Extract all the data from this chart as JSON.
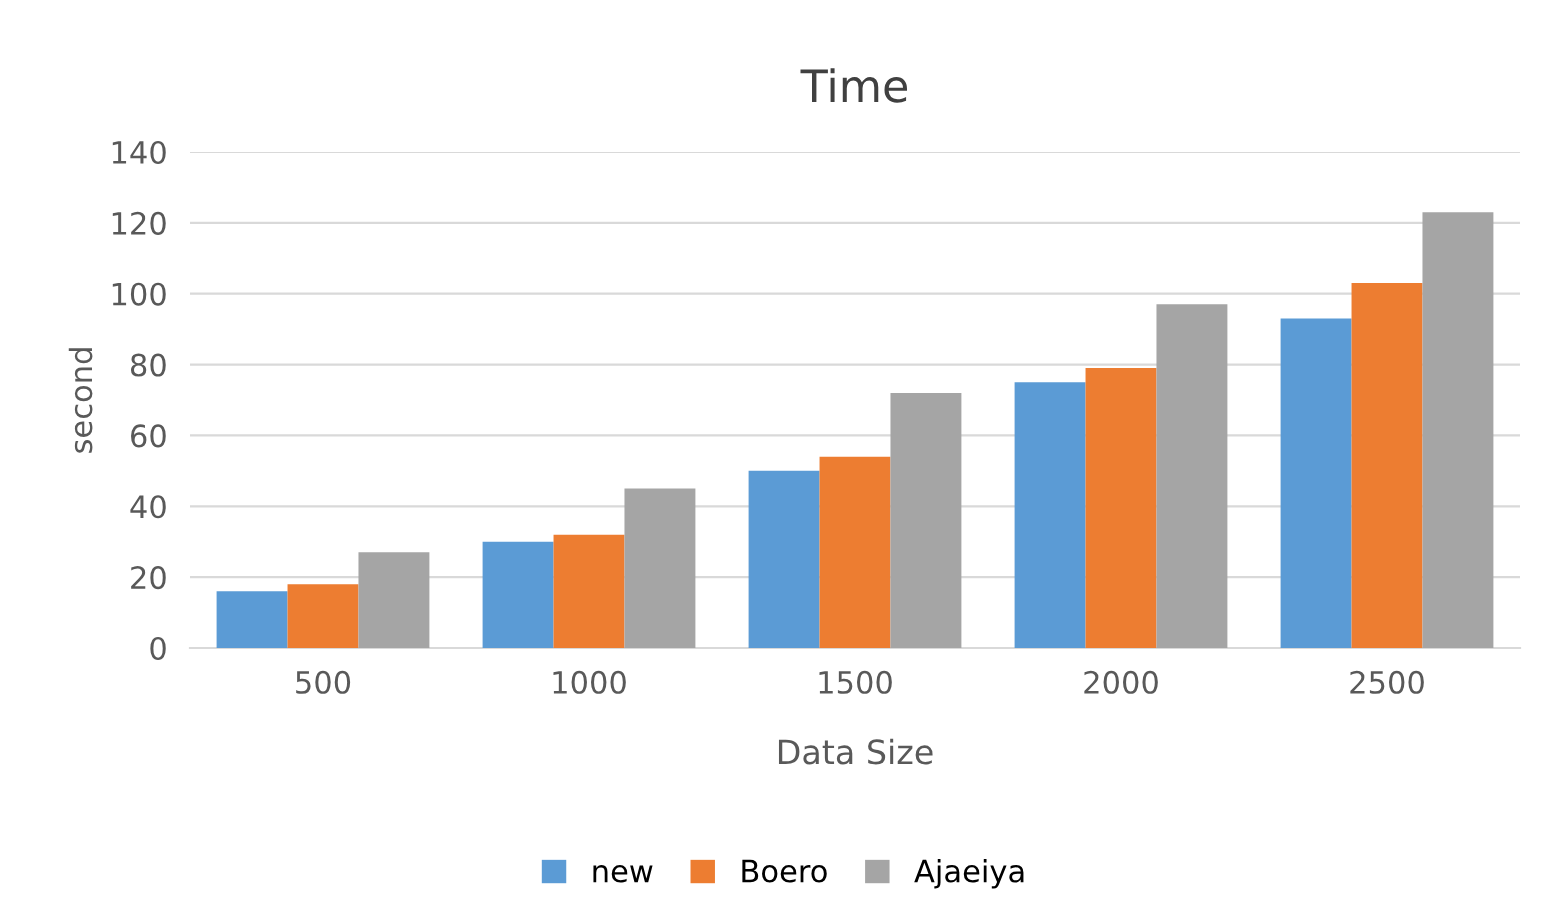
{
  "chart_data": {
    "type": "bar",
    "title": "Time",
    "xlabel": "Data Size",
    "ylabel": "second",
    "categories": [
      "500",
      "1000",
      "1500",
      "2000",
      "2500"
    ],
    "series": [
      {
        "name": "new",
        "color": "#5b9bd5",
        "values": [
          16,
          30,
          50,
          75,
          93
        ]
      },
      {
        "name": "Boero",
        "color": "#ed7d31",
        "values": [
          18,
          32,
          54,
          79,
          103
        ]
      },
      {
        "name": "Ajaeiya",
        "color": "#a5a5a5",
        "values": [
          27,
          45,
          72,
          97,
          123
        ]
      }
    ],
    "ylim": [
      0,
      140
    ],
    "yticks": [
      0,
      20,
      40,
      60,
      80,
      100,
      120,
      140
    ],
    "grid": "y",
    "legend": "bottom"
  }
}
